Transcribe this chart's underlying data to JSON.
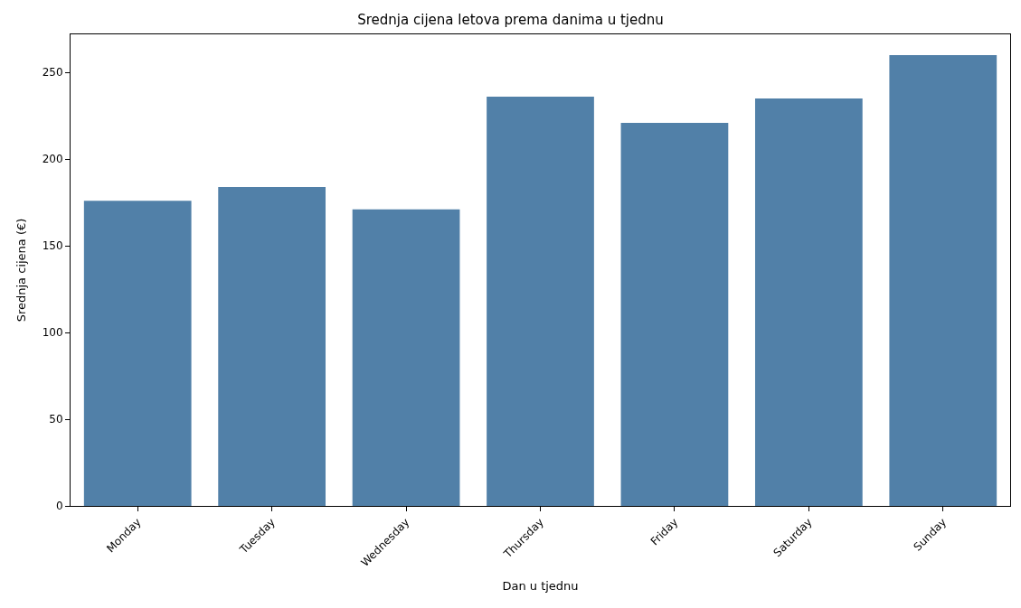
{
  "chart_data": {
    "type": "bar",
    "title": "Srednja cijena letova prema danima u tjednu",
    "xlabel": "Dan u tjednu",
    "ylabel": "Srednja cijena (€)",
    "categories": [
      "Monday",
      "Tuesday",
      "Wednesday",
      "Thursday",
      "Friday",
      "Saturday",
      "Sunday"
    ],
    "values": [
      176,
      184,
      171,
      236,
      221,
      235,
      260
    ],
    "color": "#5180a8",
    "ylim": [
      0,
      272
    ],
    "yticks": [
      0,
      50,
      100,
      150,
      200,
      250
    ]
  }
}
